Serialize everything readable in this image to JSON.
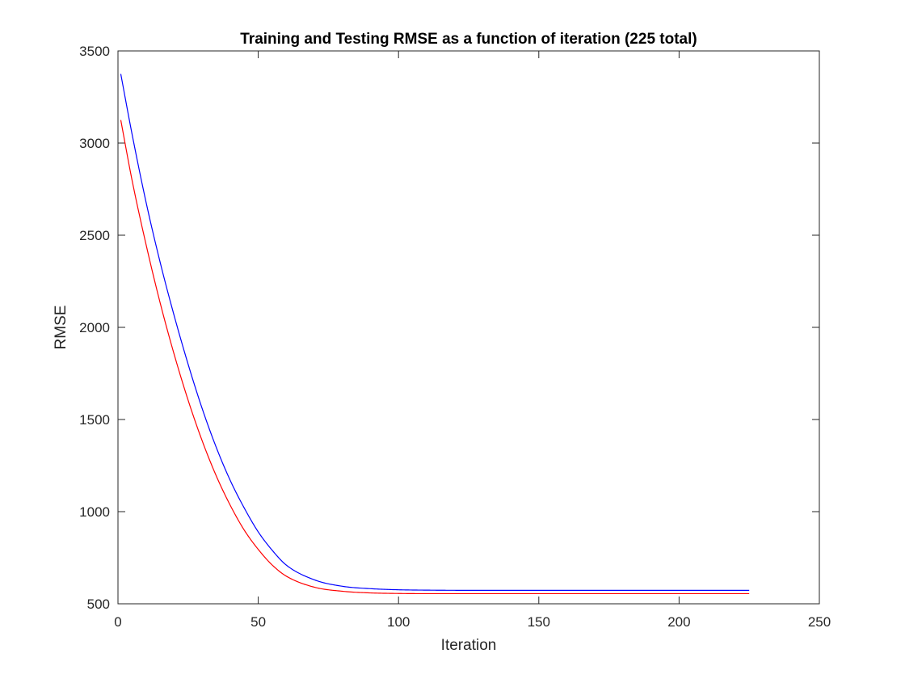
{
  "chart_data": {
    "type": "line",
    "title": "Training and Testing RMSE as a function of iteration (225 total)",
    "xlabel": "Iteration",
    "ylabel": "RMSE",
    "xlim": [
      0,
      250
    ],
    "ylim": [
      500,
      3500
    ],
    "xticks": [
      "0",
      "50",
      "100",
      "150",
      "200",
      "250"
    ],
    "yticks": [
      "500",
      "1000",
      "1500",
      "2000",
      "2500",
      "3000",
      "3500"
    ],
    "grid": false,
    "legend": "none",
    "series": [
      {
        "color": "#0000ff",
        "x": [
          1,
          5,
          10,
          15,
          20,
          25,
          30,
          35,
          40,
          45,
          50,
          55,
          60,
          70,
          80,
          90,
          100,
          110,
          125,
          150,
          175,
          200,
          225
        ],
        "values": [
          3375,
          3050,
          2680,
          2355,
          2065,
          1800,
          1560,
          1350,
          1170,
          1020,
          890,
          790,
          710,
          630,
          595,
          582,
          576,
          574,
          573,
          573,
          573,
          573,
          573
        ]
      },
      {
        "color": "#ff0000",
        "x": [
          1,
          5,
          10,
          15,
          20,
          25,
          30,
          35,
          40,
          45,
          50,
          55,
          60,
          70,
          80,
          90,
          100,
          110,
          125,
          150,
          175,
          200,
          225
        ],
        "values": [
          3125,
          2800,
          2450,
          2135,
          1855,
          1605,
          1385,
          1195,
          1035,
          900,
          795,
          710,
          650,
          590,
          568,
          559,
          556,
          555,
          555,
          555,
          555,
          555,
          555
        ]
      }
    ]
  }
}
